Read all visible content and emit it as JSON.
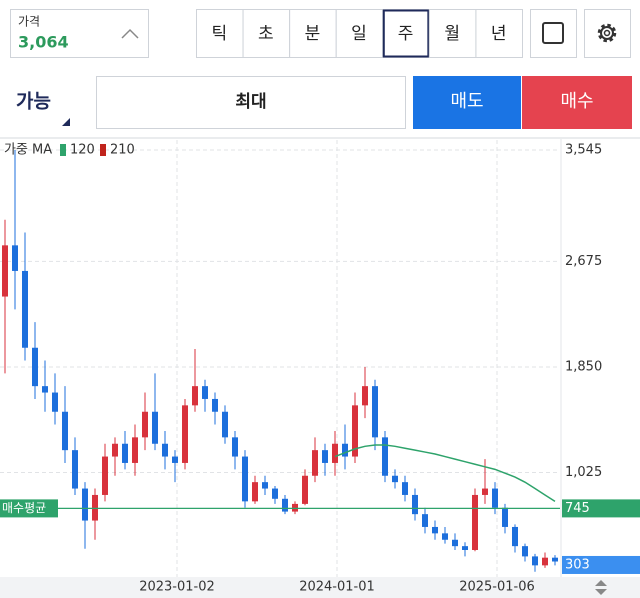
{
  "header": {
    "price_label": "가격",
    "price": "3,064",
    "periods": [
      "틱",
      "초",
      "분",
      "일",
      "주",
      "월",
      "년"
    ],
    "selected_period": "주"
  },
  "order": {
    "available": "가능",
    "max": "최대",
    "sell": "매도",
    "buy": "매수"
  },
  "chart_data": {
    "type": "candlestick",
    "legend_title": "가중 MA",
    "candles": {
      "open": [
        2400,
        2800,
        2600,
        2000,
        1700,
        1650,
        1500,
        1200,
        900,
        650,
        850,
        1150,
        1250,
        1100,
        1300,
        1500,
        1250,
        1150,
        1100,
        1550,
        1700,
        1600,
        1500,
        1300,
        1150,
        800,
        950,
        900,
        820,
        720,
        780,
        1000,
        1200,
        1100,
        1250,
        1150,
        1550,
        1700,
        1300,
        1000,
        950,
        850,
        700,
        600,
        550,
        500,
        450,
        420,
        850,
        900,
        750,
        600,
        450,
        370,
        300,
        360
      ],
      "high": [
        3000,
        3545,
        2900,
        2200,
        1900,
        1800,
        1700,
        1300,
        950,
        900,
        1250,
        1300,
        1350,
        1400,
        1650,
        1800,
        1350,
        1200,
        1600,
        1990,
        1750,
        1650,
        1550,
        1350,
        1200,
        1000,
        1000,
        920,
        850,
        800,
        1050,
        1300,
        1250,
        1350,
        1400,
        1650,
        1850,
        1750,
        1350,
        1050,
        1000,
        900,
        750,
        650,
        600,
        550,
        480,
        900,
        1130,
        950,
        780,
        620,
        470,
        390,
        400,
        380
      ],
      "low": [
        1800,
        2300,
        1900,
        1600,
        1500,
        1400,
        1100,
        850,
        430,
        500,
        800,
        1000,
        1050,
        1000,
        1200,
        1200,
        1050,
        950,
        1050,
        1500,
        1500,
        1400,
        1250,
        1050,
        750,
        780,
        850,
        780,
        700,
        700,
        770,
        950,
        1000,
        1000,
        1050,
        1100,
        1450,
        1200,
        950,
        900,
        800,
        650,
        550,
        500,
        470,
        420,
        370,
        410,
        780,
        700,
        550,
        400,
        330,
        250,
        280,
        300
      ],
      "close": [
        2800,
        2600,
        2000,
        1700,
        1650,
        1500,
        1200,
        900,
        650,
        850,
        1150,
        1250,
        1100,
        1300,
        1500,
        1250,
        1150,
        1100,
        1550,
        1700,
        1600,
        1500,
        1300,
        1150,
        800,
        950,
        900,
        820,
        720,
        780,
        1000,
        1200,
        1100,
        1250,
        1150,
        1550,
        1700,
        1300,
        1000,
        950,
        850,
        700,
        600,
        550,
        500,
        450,
        420,
        850,
        900,
        750,
        600,
        450,
        370,
        300,
        360,
        330
      ]
    },
    "up_color": "#d8323c",
    "down_color": "#1d6fdc",
    "series": [
      {
        "name": "120",
        "color": "#2ea36b",
        "values": [
          null,
          null,
          null,
          null,
          null,
          null,
          null,
          null,
          null,
          null,
          null,
          null,
          null,
          null,
          null,
          null,
          null,
          null,
          null,
          null,
          null,
          null,
          null,
          null,
          null,
          null,
          null,
          null,
          null,
          null,
          null,
          null,
          null,
          1150,
          1180,
          1210,
          1230,
          1240,
          1240,
          1230,
          1215,
          1200,
          1185,
          1170,
          1150,
          1130,
          1110,
          1090,
          1070,
          1050,
          1020,
          990,
          950,
          900,
          850,
          800
        ]
      },
      {
        "name": "210",
        "color": "#c0241c"
      }
    ],
    "reference_lines": [
      {
        "label": "매수평균",
        "value": 745,
        "color": "#2ea36b"
      },
      {
        "value": 303,
        "color": "#3b8ff0"
      }
    ],
    "ylim": [
      209,
      3623
    ],
    "yticks": [
      {
        "value": 3545,
        "label": "3,545"
      },
      {
        "value": 2675,
        "label": "2,675"
      },
      {
        "value": 1850,
        "label": "1,850"
      },
      {
        "value": 1025,
        "label": "1,025"
      }
    ],
    "xlim": [
      -0.5,
      55.5
    ],
    "xticks": [
      {
        "value": 17.2,
        "label": "2023-01-02"
      },
      {
        "value": 33.2,
        "label": "2024-01-01"
      },
      {
        "value": 49.2,
        "label": "2025-01-06"
      }
    ],
    "grid": true
  }
}
